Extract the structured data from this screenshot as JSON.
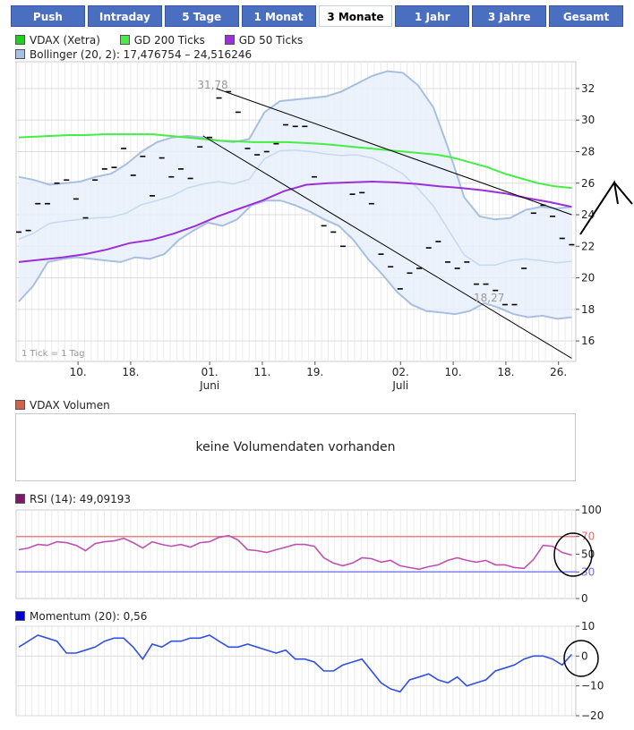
{
  "tabs": [
    {
      "label": "Push",
      "active": false
    },
    {
      "label": "Intraday",
      "active": false
    },
    {
      "label": "5 Tage",
      "active": false
    },
    {
      "label": "1 Monat",
      "active": false
    },
    {
      "label": "3 Monate",
      "active": true
    },
    {
      "label": "1 Jahr",
      "active": false
    },
    {
      "label": "3 Jahre",
      "active": false
    },
    {
      "label": "Gesamt",
      "active": false
    }
  ],
  "legend_main": {
    "vdax": "VDAX (Xetra)",
    "gd200": "GD 200 Ticks",
    "gd50": "GD 50 Ticks",
    "bollinger": "Bollinger (20, 2): 17,476754 – 24,516246"
  },
  "volume": {
    "legend": "VDAX Volumen",
    "message": "keine Volumendaten vorhanden"
  },
  "rsi": {
    "legend": "RSI (14): 49,09193"
  },
  "momentum": {
    "legend": "Momentum (20): 0,56"
  },
  "main_note": "1 Tick = 1 Tag",
  "colors": {
    "vdax": "#22cc22",
    "gd200": "#44ee44",
    "gd50": "#9b30d9",
    "bollinger": "#a8c0e0",
    "bollinger_fill": "#e8f0fb",
    "volume": "#d06050",
    "rsi": "#7a1a6a",
    "momentum": "#0000cc",
    "rsi_line": "#c050b0",
    "momentum_line": "#3050e0",
    "tab_bg": "#4a6fc0"
  },
  "chart_data": [
    {
      "type": "line",
      "title": "",
      "xlabel": "",
      "ylabel": "",
      "ylim": [
        14.7,
        33.7
      ],
      "yticks": [
        16,
        18,
        20,
        22,
        24,
        26,
        28,
        30,
        32
      ],
      "ytick_labels": [
        "16",
        "18",
        "20",
        "22",
        "24",
        "26",
        "28",
        "30",
        "32"
      ],
      "xticks": [
        {
          "label": "10.",
          "sub": "",
          "index": 9
        },
        {
          "label": "18.",
          "sub": "",
          "index": 17
        },
        {
          "label": "01.",
          "sub": "Juni",
          "index": 29
        },
        {
          "label": "11.",
          "sub": "",
          "index": 37
        },
        {
          "label": "19.",
          "sub": "",
          "index": 45
        },
        {
          "label": "02.",
          "sub": "Juli",
          "index": 58
        },
        {
          "label": "10.",
          "sub": "",
          "index": 66
        },
        {
          "label": "18.",
          "sub": "",
          "index": 74
        },
        {
          "label": "26.",
          "sub": "",
          "index": 82
        }
      ],
      "grid": true,
      "annotations": [
        {
          "text": "31,78",
          "index": 30,
          "value": 31.78
        },
        {
          "text": "18,27",
          "index": 72,
          "value": 18.27
        }
      ],
      "series": [
        {
          "name": "VDAX (Xetra)",
          "style": "ticks",
          "values": [
            22.9,
            23.0,
            24.7,
            24.7,
            26.0,
            26.2,
            25.0,
            23.8,
            26.2,
            26.9,
            27.0,
            28.2,
            26.5,
            27.7,
            25.2,
            27.6,
            26.4,
            26.9,
            26.3,
            28.3,
            28.9,
            31.4,
            31.8,
            30.5,
            28.2,
            27.8,
            28.0,
            28.5,
            29.7,
            29.6,
            29.6,
            26.4,
            23.3,
            22.9,
            22.0,
            25.3,
            25.4,
            24.7,
            21.5,
            20.7,
            19.3,
            20.3,
            20.6,
            21.9,
            22.3,
            21.0,
            20.6,
            21.0,
            19.6,
            19.6,
            19.2,
            18.3,
            18.3,
            20.6,
            24.1,
            24.6,
            23.9,
            22.5,
            22.1
          ]
        },
        {
          "name": "GD 200 Ticks",
          "values": [
            28.9,
            28.95,
            29.0,
            29.05,
            29.05,
            29.1,
            29.1,
            29.1,
            29.1,
            29.0,
            28.9,
            28.8,
            28.7,
            28.65,
            28.6,
            28.6,
            28.6,
            28.55,
            28.5,
            28.4,
            28.3,
            28.2,
            28.1,
            28.0,
            27.9,
            27.8,
            27.6,
            27.3,
            27.0,
            26.6,
            26.3,
            26.0,
            25.8,
            25.7
          ]
        },
        {
          "name": "GD 50 Ticks",
          "values": [
            21.0,
            21.15,
            21.3,
            21.5,
            21.8,
            22.2,
            22.4,
            22.8,
            23.3,
            23.9,
            24.4,
            24.9,
            25.5,
            25.9,
            26.0,
            26.05,
            26.1,
            26.05,
            25.95,
            25.8,
            25.7,
            25.55,
            25.35,
            25.05,
            24.8,
            24.5
          ]
        },
        {
          "name": "Bollinger upper",
          "values": [
            26.4,
            26.2,
            25.9,
            26.0,
            26.1,
            26.4,
            26.6,
            27.2,
            28.0,
            28.6,
            28.9,
            29.0,
            28.9,
            28.7,
            28.6,
            28.8,
            30.5,
            31.2,
            31.3,
            31.4,
            31.5,
            31.8,
            32.3,
            32.8,
            33.1,
            33.0,
            32.2,
            30.8,
            28.1,
            25.1,
            23.9,
            23.7,
            23.8,
            24.3,
            24.5,
            24.4,
            24.5
          ]
        },
        {
          "name": "Bollinger lower",
          "values": [
            18.5,
            19.5,
            21.0,
            21.2,
            21.3,
            21.2,
            21.1,
            21.0,
            21.3,
            21.2,
            21.5,
            22.4,
            23.0,
            23.5,
            23.3,
            23.7,
            24.6,
            24.9,
            24.9,
            24.6,
            24.2,
            23.7,
            23.3,
            22.4,
            21.2,
            20.2,
            19.1,
            18.3,
            17.9,
            17.8,
            17.7,
            17.9,
            18.4,
            18.1,
            17.7,
            17.5,
            17.6,
            17.4,
            17.5
          ]
        }
      ],
      "trendlines": [
        {
          "from": [
            30,
            32.0
          ],
          "to": [
            84,
            24.0
          ]
        },
        {
          "from": [
            28,
            29.0
          ],
          "to": [
            84,
            14.9
          ]
        }
      ]
    },
    {
      "type": "line",
      "title": "",
      "ylim": [
        0,
        100
      ],
      "yticks": [
        0,
        30,
        50,
        70,
        100
      ],
      "ytick_labels": [
        "0",
        "30",
        "50",
        "70",
        "100"
      ],
      "reference_lines": [
        70,
        30
      ],
      "series": [
        {
          "name": "RSI (14)",
          "values": [
            55,
            57,
            61,
            60,
            64,
            63,
            60,
            54,
            62,
            64,
            65,
            68,
            63,
            57,
            64,
            61,
            59,
            61,
            58,
            63,
            64,
            69,
            71,
            66,
            55,
            54,
            52,
            55,
            58,
            61,
            61,
            59,
            46,
            40,
            37,
            40,
            46,
            45,
            41,
            43,
            37,
            35,
            33,
            36,
            38,
            43,
            46,
            43,
            41,
            43,
            38,
            38,
            35,
            34,
            44,
            60,
            59,
            52,
            49
          ]
        }
      ]
    },
    {
      "type": "line",
      "title": "",
      "ylim": [
        -20,
        10
      ],
      "yticks": [
        -20,
        -10,
        0,
        10
      ],
      "ytick_labels": [
        "−20",
        "−10",
        "0",
        "10"
      ],
      "series": [
        {
          "name": "Momentum (20)",
          "values": [
            3,
            5,
            7,
            6,
            5,
            1,
            1,
            2,
            3,
            5,
            6,
            6,
            3,
            -1,
            4,
            3,
            5,
            5,
            6,
            6,
            7,
            5,
            3,
            3,
            4,
            3,
            2,
            1,
            2,
            -1,
            -1,
            -2,
            -5,
            -5,
            -3,
            -2,
            -1,
            -5,
            -9,
            -11,
            -12,
            -8,
            -7,
            -6,
            -8,
            -9,
            -7,
            -10,
            -9,
            -8,
            -5,
            -4,
            -3,
            -1,
            0,
            0,
            -1,
            -3,
            0.56
          ]
        }
      ]
    }
  ]
}
